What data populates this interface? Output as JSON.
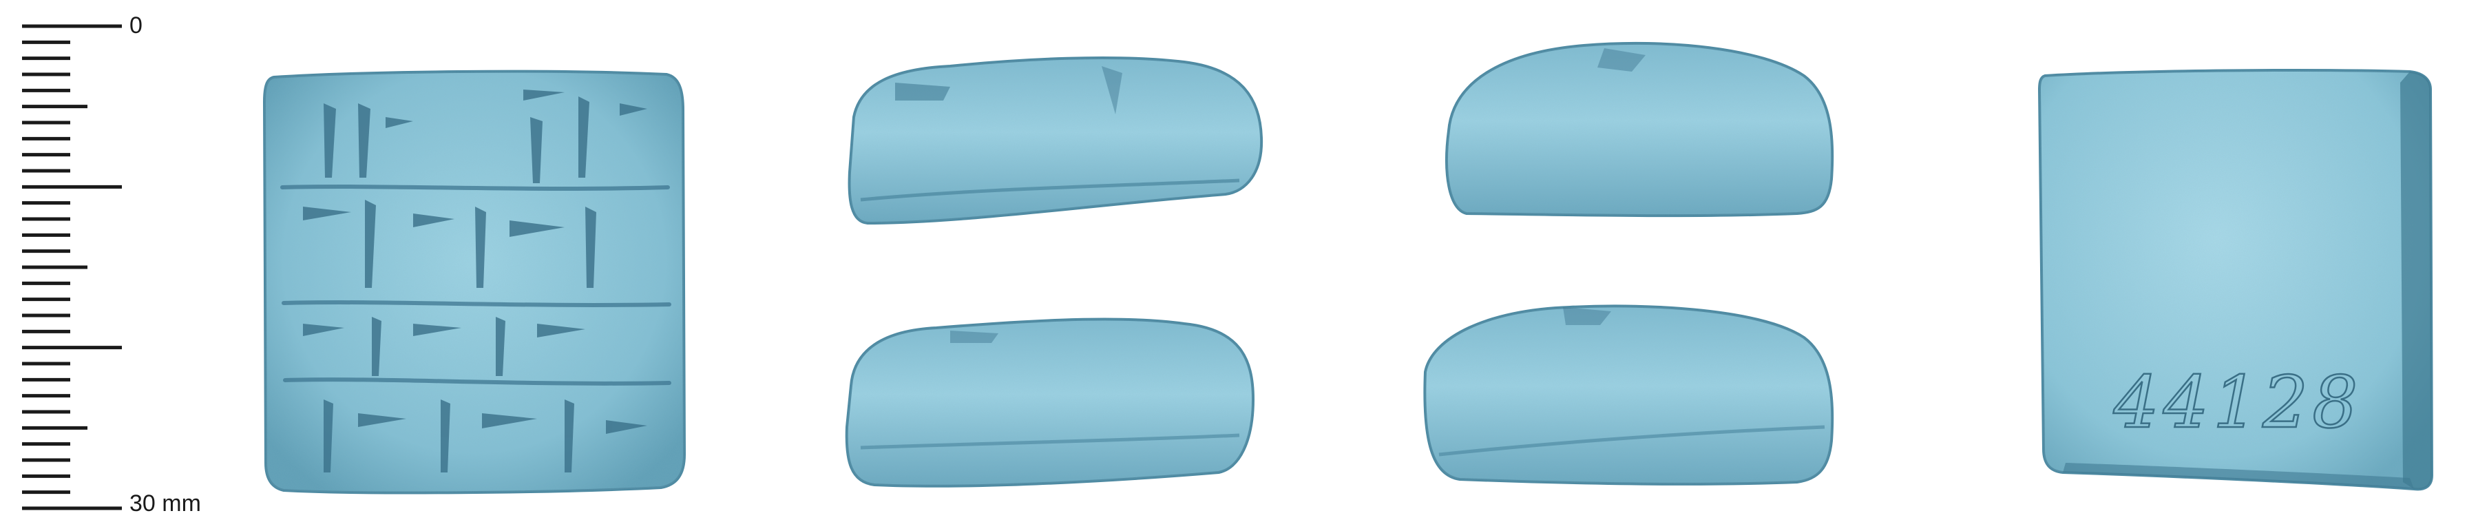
{
  "scale": {
    "top_label": "0",
    "bottom_label": "30 mm",
    "range_mm": [
      0,
      30
    ],
    "minor_step_mm": 1,
    "major_step_mm": 10
  },
  "tablet": {
    "inscription": "44128",
    "color": "#8ec6d8",
    "shadow_color": "#3f7a92",
    "highlight_color": "#c4e6f0"
  },
  "views": [
    {
      "name": "obverse"
    },
    {
      "name": "top-edge"
    },
    {
      "name": "bottom-edge"
    },
    {
      "name": "left-edge"
    },
    {
      "name": "right-edge"
    },
    {
      "name": "reverse"
    }
  ]
}
